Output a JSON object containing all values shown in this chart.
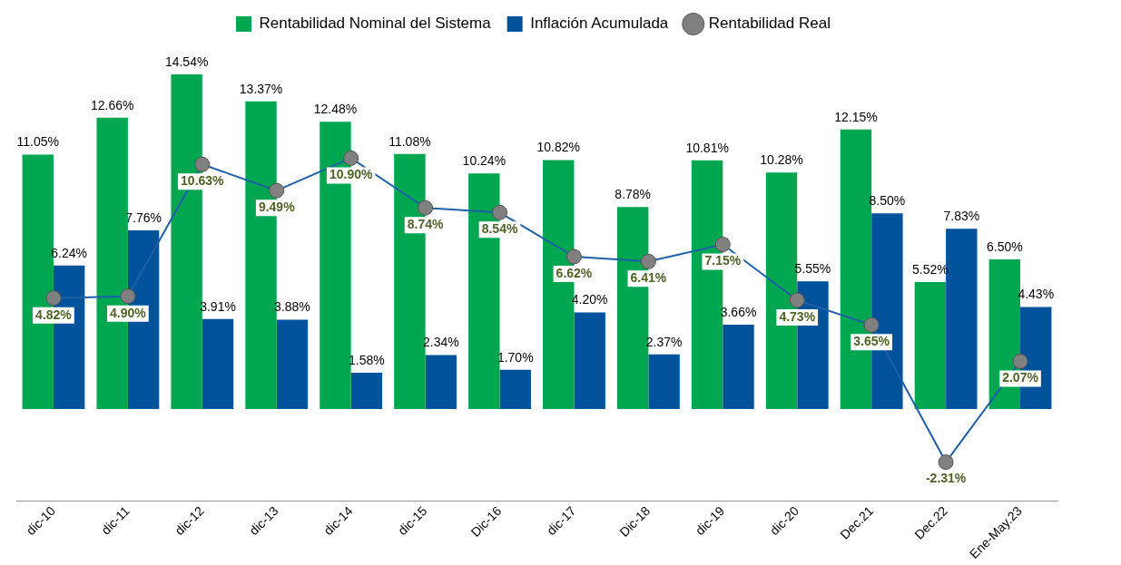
{
  "chart_data": {
    "type": "bar",
    "categories": [
      "dic-10",
      "dic-11",
      "dic-12",
      "dic-13",
      "dic-14",
      "dic-15",
      "Dic-16",
      "dic-17",
      "Dic-18",
      "dic-19",
      "dic-20",
      "Dec.21",
      "Dec.22",
      "Ene-May.23"
    ],
    "series": [
      {
        "name": "Rentabilidad Nominal del Sistema",
        "color": "#00a650",
        "values": [
          11.05,
          12.66,
          14.54,
          13.37,
          12.48,
          11.08,
          10.24,
          10.82,
          8.78,
          10.81,
          10.28,
          12.15,
          5.52,
          6.5
        ],
        "value_labels": [
          "11.05%",
          "12.66%",
          "14.54%",
          "13.37%",
          "12.48%",
          "11.08%",
          "10.24%",
          "10.82%",
          "8.78%",
          "10.81%",
          "10.28%",
          "12.15%",
          "5.52%",
          "6.50%"
        ]
      },
      {
        "name": "Inflación Acumulada",
        "color": "#00529b",
        "values": [
          6.24,
          7.76,
          3.91,
          3.88,
          1.58,
          2.34,
          1.7,
          4.2,
          2.37,
          3.66,
          5.55,
          8.5,
          7.83,
          4.43
        ],
        "value_labels": [
          "6.24%",
          "7.76%",
          "3.91%",
          "3.88%",
          "1.58%",
          "2.34%",
          "1.70%",
          "4.20%",
          "2.37%",
          "3.66%",
          "5.55%",
          "8.50%",
          "7.83%",
          "4.43%"
        ]
      },
      {
        "name": "Rentabilidad Real",
        "type": "line",
        "color": "#1f5fa8",
        "values": [
          4.82,
          4.9,
          10.63,
          9.49,
          10.9,
          8.74,
          8.54,
          6.62,
          6.41,
          7.15,
          4.73,
          3.65,
          -2.31,
          2.07
        ],
        "value_labels": [
          "4.82%",
          "4.90%",
          "10.63%",
          "9.49%",
          "10.90%",
          "8.74%",
          "8.54%",
          "6.62%",
          "6.41%",
          "7.15%",
          "4.73%",
          "3.65%",
          "-2.31%",
          "2.07%"
        ]
      }
    ],
    "tick_labels": "x",
    "legend": "top",
    "marker": "circle",
    "grid": false
  }
}
